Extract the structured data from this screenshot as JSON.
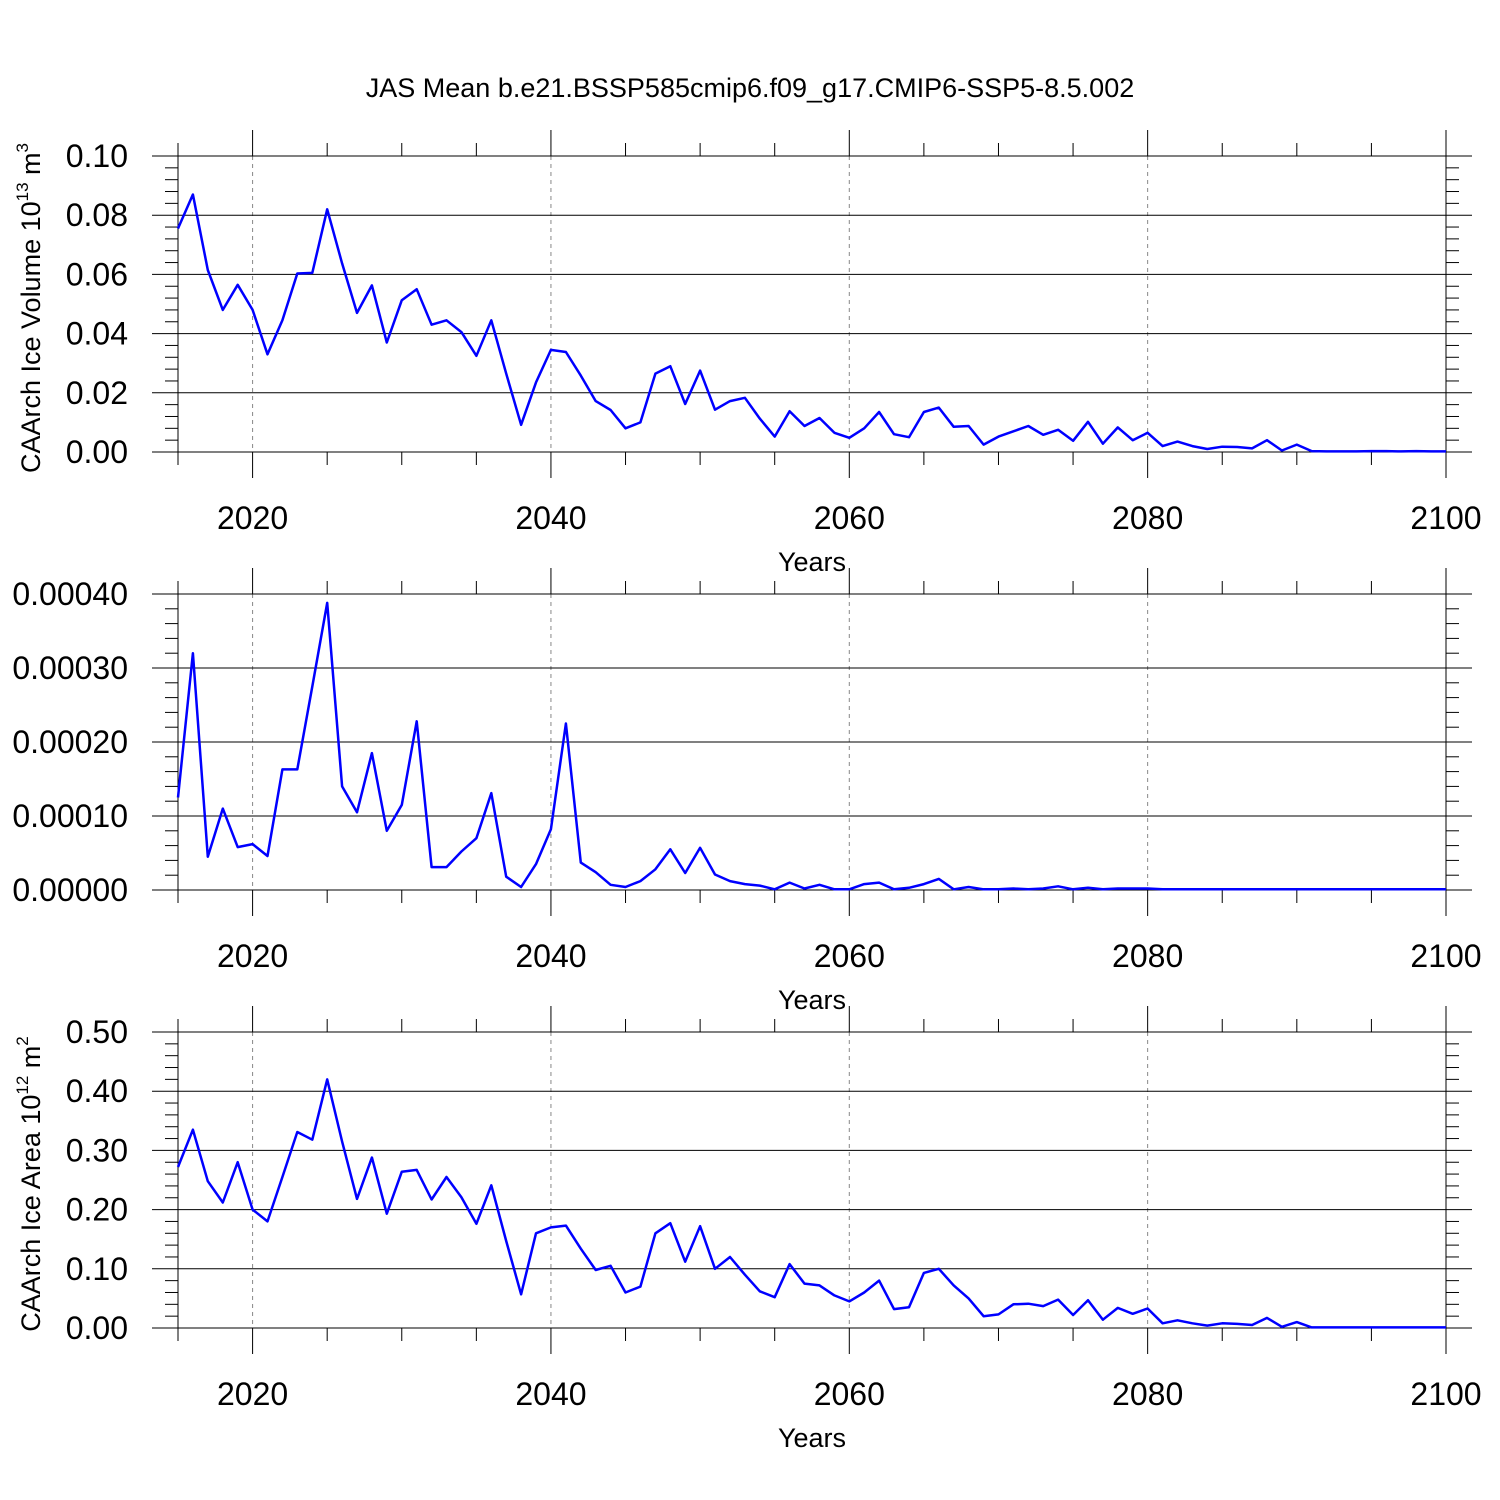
{
  "title": "JAS Mean b.e21.BSSP585cmip6.f09_g17.CMIP6-SSP5-8.5.002",
  "colors": {
    "line": "#0000ff",
    "axis": "#000000",
    "grid": "#888888"
  },
  "chart_data": [
    {
      "type": "line",
      "xlabel": "Years",
      "ylabel": {
        "main": "CAArch Ice Volume 10",
        "sup": "13",
        "mid": " m",
        "sup2": "3"
      },
      "xlim": [
        2015,
        2100
      ],
      "ylim": [
        0,
        0.1
      ],
      "xticks": [
        2020,
        2040,
        2060,
        2080,
        2100
      ],
      "yticks": [
        "0.00",
        "0.02",
        "0.04",
        "0.06",
        "0.08",
        "0.10"
      ],
      "x_start": 2015,
      "x_end": 2100,
      "series": [
        {
          "values": [
            0.0755,
            0.087,
            0.0615,
            0.048,
            0.0565,
            0.048,
            0.033,
            0.0445,
            0.0603,
            0.0605,
            0.082,
            0.0637,
            0.047,
            0.0563,
            0.037,
            0.0513,
            0.055,
            0.043,
            0.0445,
            0.0405,
            0.0325,
            0.0445,
            0.0265,
            0.0092,
            0.0235,
            0.0345,
            0.0338,
            0.0258,
            0.0172,
            0.0142,
            0.008,
            0.01,
            0.0265,
            0.029,
            0.0162,
            0.0275,
            0.0143,
            0.0172,
            0.0183,
            0.0113,
            0.0052,
            0.0138,
            0.0088,
            0.0115,
            0.0065,
            0.0048,
            0.008,
            0.0135,
            0.006,
            0.005,
            0.0135,
            0.015,
            0.0085,
            0.0088,
            0.0025,
            0.0052,
            0.007,
            0.0088,
            0.0058,
            0.0075,
            0.0038,
            0.0102,
            0.0028,
            0.0083,
            0.004,
            0.0065,
            0.002,
            0.0035,
            0.002,
            0.001,
            0.0018,
            0.0017,
            0.0012,
            0.004,
            0.0005,
            0.0025,
            0.0003,
            0.0002,
            0.0002,
            0.0002,
            0.0003,
            0.0003,
            0.0002,
            0.0003,
            0.0002,
            0.0002
          ]
        }
      ]
    },
    {
      "type": "line",
      "xlabel": "Years",
      "ylabel": "",
      "xlim": [
        2015,
        2100
      ],
      "ylim": [
        0,
        0.0004
      ],
      "xticks": [
        2020,
        2040,
        2060,
        2080,
        2100
      ],
      "yticks": [
        "0.00000",
        "0.00010",
        "0.00020",
        "0.00030",
        "0.00040"
      ],
      "x_start": 2015,
      "x_end": 2100,
      "series": [
        {
          "values": [
            0.000125,
            0.00032,
            4.5e-05,
            0.00011,
            5.8e-05,
            6.2e-05,
            4.6e-05,
            0.000163,
            0.000163,
            0.000275,
            0.000388,
            0.00014,
            0.000105,
            0.000185,
            8e-05,
            0.000115,
            0.000228,
            3.1e-05,
            3.1e-05,
            5.2e-05,
            7e-05,
            0.000131,
            1.8e-05,
            4e-06,
            3.5e-05,
            8.2e-05,
            0.000225,
            3.7e-05,
            2.4e-05,
            7e-06,
            4e-06,
            1.2e-05,
            2.8e-05,
            5.5e-05,
            2.3e-05,
            5.7e-05,
            2.1e-05,
            1.2e-05,
            8e-06,
            6e-06,
            1e-06,
            1e-05,
            2e-06,
            7e-06,
            1e-06,
            1e-06,
            8e-06,
            1e-05,
            1e-06,
            3e-06,
            8e-06,
            1.5e-05,
            1e-06,
            4e-06,
            1e-06,
            1e-06,
            2e-06,
            1e-06,
            2e-06,
            5e-06,
            1e-06,
            3e-06,
            1e-06,
            2e-06,
            2e-06,
            2e-06,
            1e-06,
            1e-06,
            1e-06,
            1e-06,
            1e-06,
            1e-06,
            1e-06,
            1e-06,
            1e-06,
            1e-06,
            1e-06,
            1e-06,
            1e-06,
            1e-06,
            1e-06,
            1e-06,
            1e-06,
            1e-06,
            1e-06,
            1e-06
          ]
        }
      ]
    },
    {
      "type": "line",
      "xlabel": "Years",
      "ylabel": {
        "main": "CAArch Ice Area 10",
        "sup": "12",
        "mid": " m",
        "sup2": "2"
      },
      "xlim": [
        2015,
        2100
      ],
      "ylim": [
        0,
        0.5
      ],
      "xticks": [
        2020,
        2040,
        2060,
        2080,
        2100
      ],
      "yticks": [
        "0.00",
        "0.10",
        "0.20",
        "0.30",
        "0.40",
        "0.50"
      ],
      "x_start": 2015,
      "x_end": 2100,
      "series": [
        {
          "values": [
            0.272,
            0.335,
            0.248,
            0.212,
            0.28,
            0.2,
            0.18,
            0.255,
            0.331,
            0.318,
            0.42,
            0.315,
            0.218,
            0.288,
            0.193,
            0.264,
            0.267,
            0.217,
            0.255,
            0.221,
            0.176,
            0.241,
            0.147,
            0.057,
            0.16,
            0.17,
            0.173,
            0.134,
            0.098,
            0.105,
            0.06,
            0.07,
            0.16,
            0.177,
            0.112,
            0.172,
            0.1,
            0.12,
            0.09,
            0.062,
            0.052,
            0.108,
            0.075,
            0.072,
            0.055,
            0.045,
            0.06,
            0.08,
            0.032,
            0.035,
            0.093,
            0.1,
            0.072,
            0.05,
            0.02,
            0.023,
            0.04,
            0.041,
            0.037,
            0.048,
            0.022,
            0.047,
            0.014,
            0.034,
            0.024,
            0.033,
            0.008,
            0.013,
            0.008,
            0.004,
            0.008,
            0.007,
            0.005,
            0.017,
            0.002,
            0.01,
            0.001,
            0.001,
            0.001,
            0.001,
            0.001,
            0.001,
            0.001,
            0.001,
            0.001,
            0.001
          ]
        }
      ]
    }
  ]
}
